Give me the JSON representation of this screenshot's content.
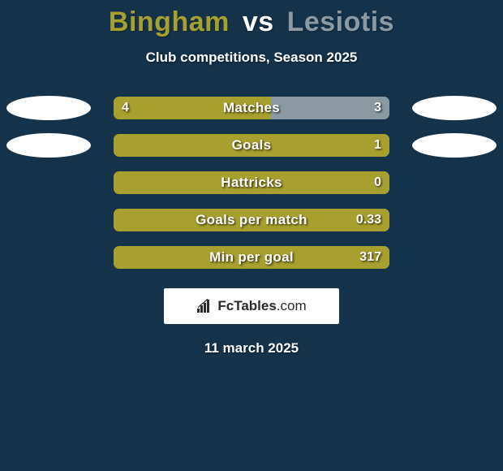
{
  "background_color": "#14334b",
  "title": {
    "player1": "Bingham",
    "vs": "vs",
    "player2": "Lesiotis",
    "player1_color": "#a8a02e",
    "vs_color": "#ffffff",
    "player2_color": "#8b99a3"
  },
  "subtitle": "Club competitions, Season 2025",
  "left_color": "#a8a02e",
  "right_color": "#8b99a3",
  "bar_bg_left": "#a8a02e",
  "bar_bg_right": "#8b99a3",
  "ellipse_left_color": "#ffffff",
  "ellipse_right_color": "#ffffff",
  "rows": [
    {
      "label": "Matches",
      "left_value": "4",
      "right_value": "3",
      "left_pct": 57,
      "right_pct": 43,
      "show_left_ellipse": true,
      "show_right_ellipse": true
    },
    {
      "label": "Goals",
      "left_value": "",
      "right_value": "1",
      "left_pct": 100,
      "right_pct": 0,
      "show_left_ellipse": true,
      "show_right_ellipse": true
    },
    {
      "label": "Hattricks",
      "left_value": "",
      "right_value": "0",
      "left_pct": 100,
      "right_pct": 0,
      "show_left_ellipse": false,
      "show_right_ellipse": false
    },
    {
      "label": "Goals per match",
      "left_value": "",
      "right_value": "0.33",
      "left_pct": 100,
      "right_pct": 0,
      "show_left_ellipse": false,
      "show_right_ellipse": false
    },
    {
      "label": "Min per goal",
      "left_value": "",
      "right_value": "317",
      "left_pct": 100,
      "right_pct": 0,
      "show_left_ellipse": false,
      "show_right_ellipse": false
    }
  ],
  "brand": {
    "text_strong": "FcTables",
    "text_thin": ".com"
  },
  "footer_date": "11 march 2025"
}
